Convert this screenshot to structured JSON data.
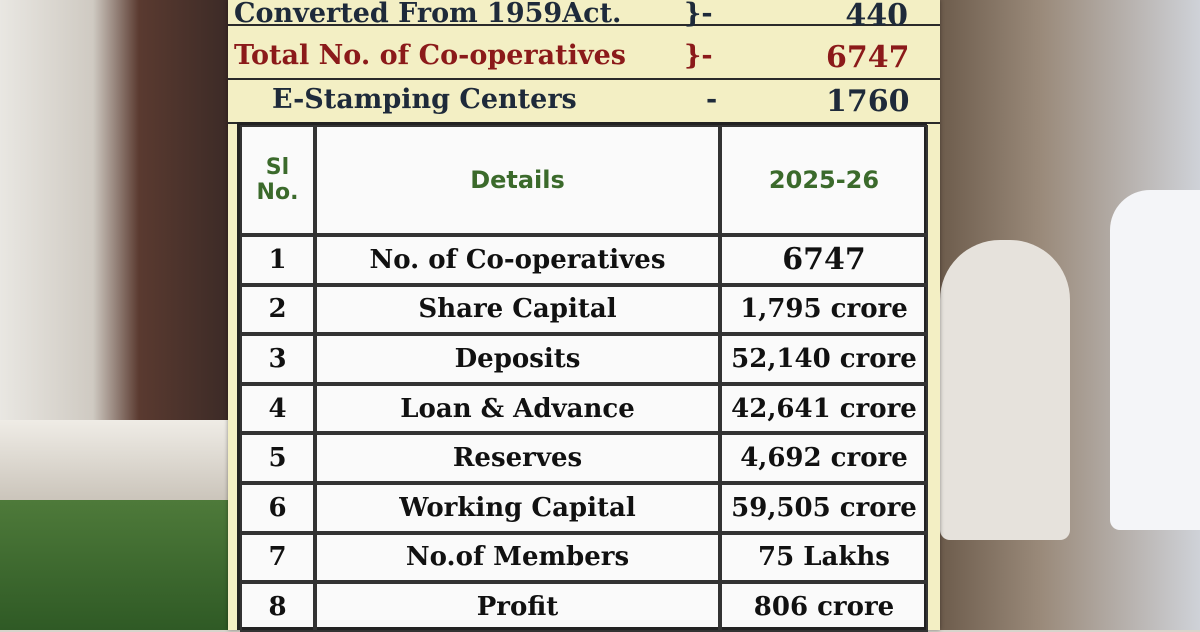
{
  "banner": {
    "summary": [
      {
        "label": "Converted From 1959Act.",
        "separator": "}-",
        "value": "440"
      },
      {
        "label": "Total No. of Co-operatives",
        "separator": "}-",
        "value": "6747"
      },
      {
        "label": "E-Stamping Centers",
        "separator": "-",
        "value": "1760"
      }
    ],
    "table": {
      "header": [
        "Sl No.",
        "Details",
        "2025-26"
      ],
      "rows": [
        [
          "1",
          "No. of Co-operatives",
          "6747"
        ],
        [
          "2",
          "Share Capital",
          "1,795 crore"
        ],
        [
          "3",
          "Deposits",
          "52,140 crore"
        ],
        [
          "4",
          "Loan & Advance",
          "42,641 crore"
        ],
        [
          "5",
          "Reserves",
          "4,692 crore"
        ],
        [
          "6",
          "Working Capital",
          "59,505 crore"
        ],
        [
          "7",
          "No.of Members",
          "75 Lakhs"
        ],
        [
          "8",
          "Profit",
          "806 crore"
        ]
      ]
    }
  }
}
